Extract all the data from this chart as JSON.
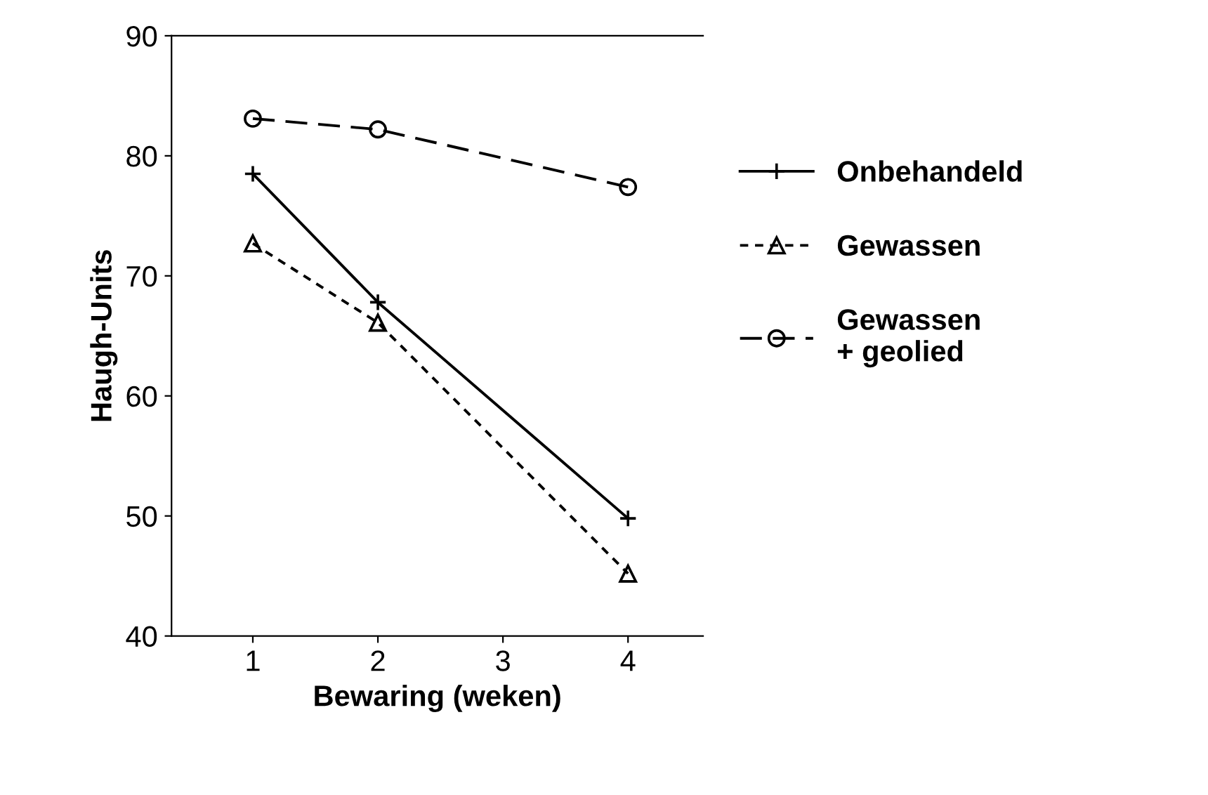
{
  "chart_data": {
    "type": "line",
    "xlabel": "Bewaring (weken)",
    "ylabel": "Haugh-Units",
    "xlim": [
      0.35,
      4.6
    ],
    "xticks": [
      1,
      2,
      3,
      4
    ],
    "ylim": [
      40,
      90
    ],
    "yticks": [
      40,
      50,
      60,
      70,
      80,
      90
    ],
    "grid": false,
    "legend": "right",
    "series": [
      {
        "name": "Onbehandeld",
        "color": "#000000",
        "marker": "cross",
        "line_style": "solid",
        "x": [
          1,
          2,
          4
        ],
        "values": [
          78.5,
          67.8,
          49.8
        ]
      },
      {
        "name": "Gewassen",
        "color": "#000000",
        "marker": "triangle",
        "line_style": "dotted",
        "x": [
          1,
          2,
          4
        ],
        "values": [
          72.7,
          66.1,
          45.2
        ]
      },
      {
        "name": "Gewassen\n+ geolied",
        "color": "#000000",
        "marker": "circle",
        "line_style": "dashed",
        "x": [
          1,
          2,
          4
        ],
        "values": [
          83.1,
          82.2,
          77.4
        ]
      }
    ]
  }
}
